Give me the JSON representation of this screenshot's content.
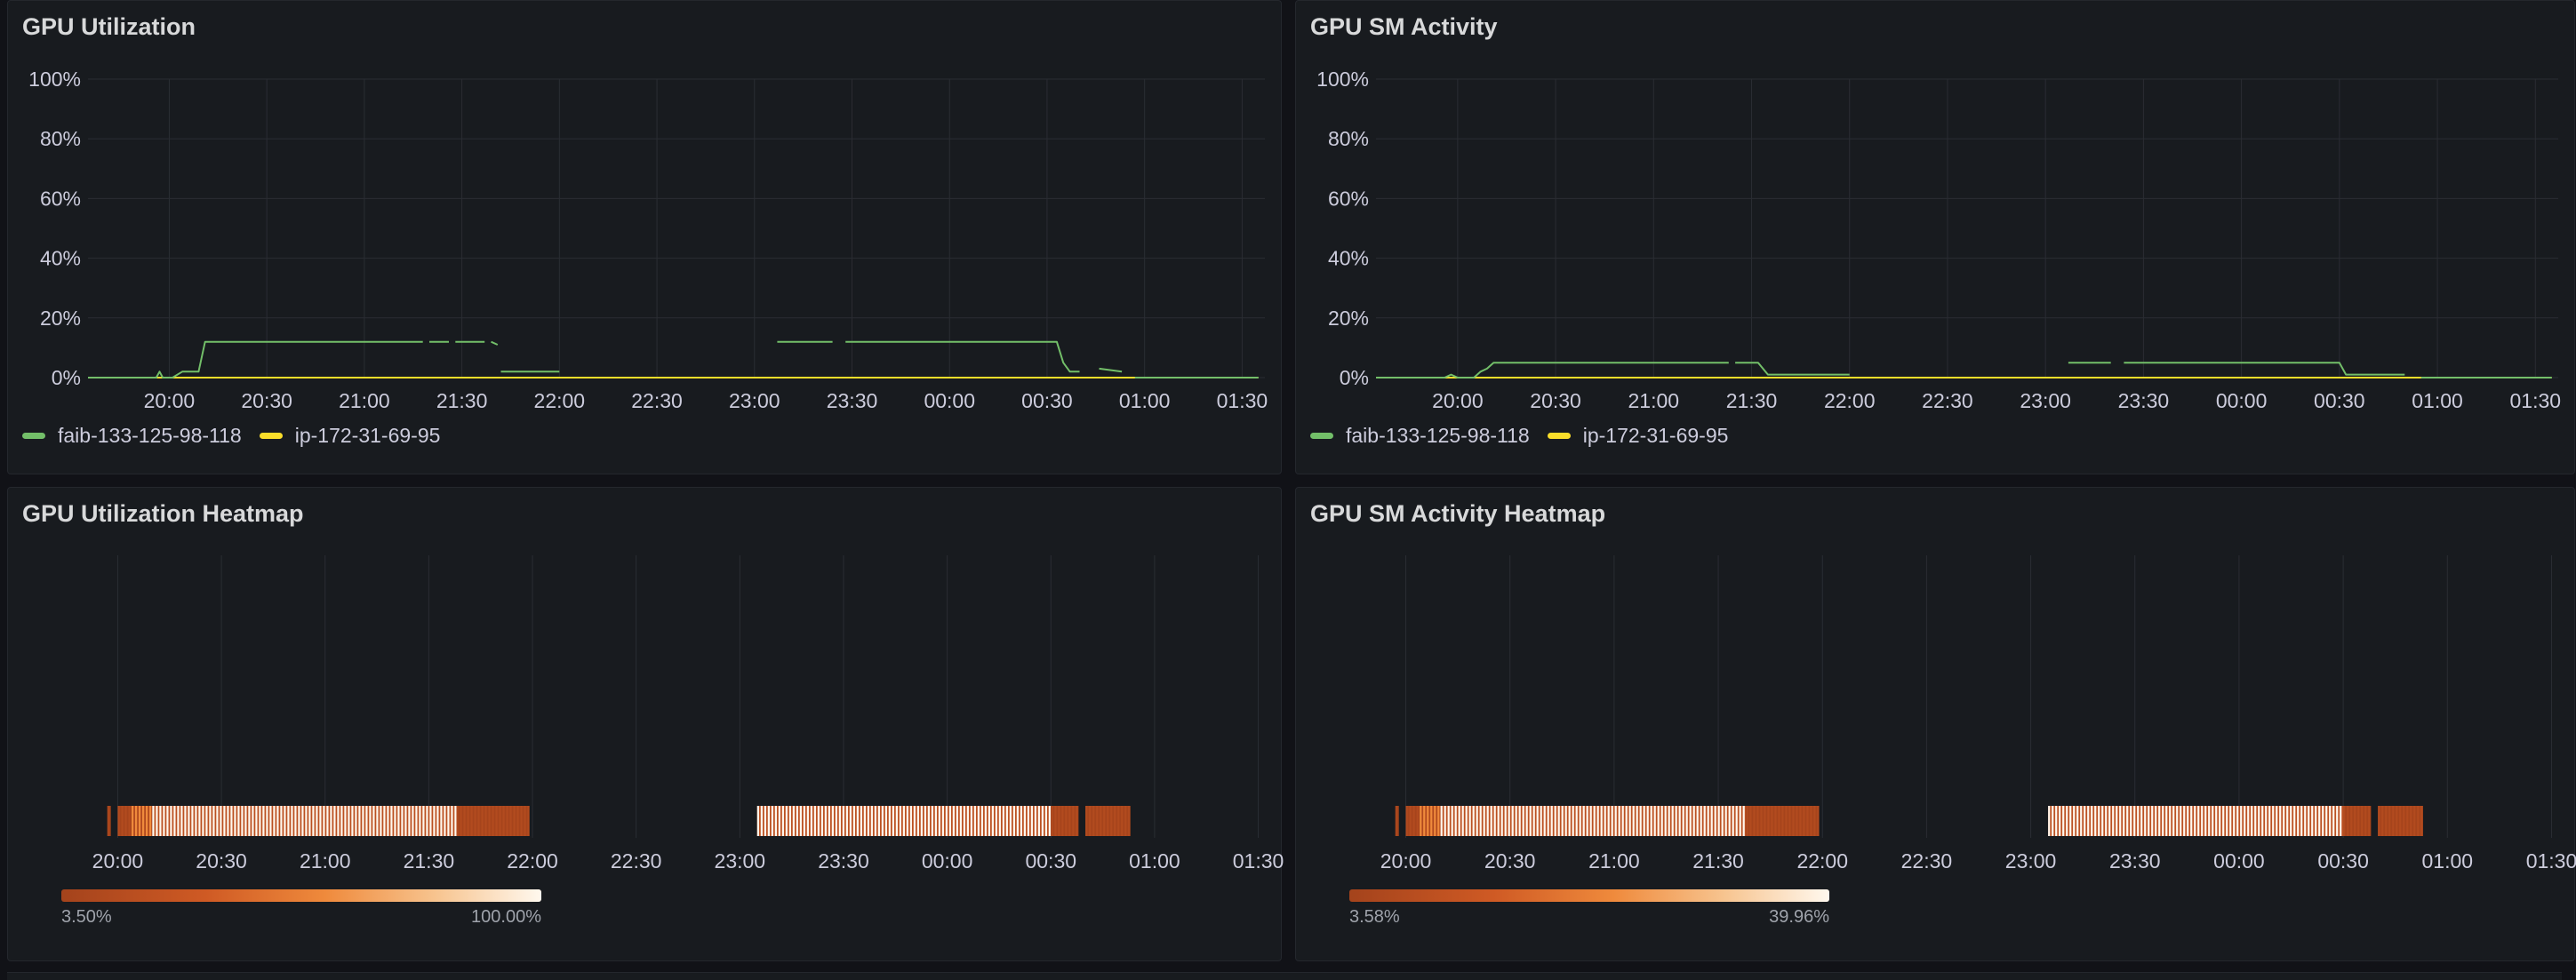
{
  "theme": {
    "background": "#111217",
    "panel_bg": "#181b1f",
    "grid": "#2a2d33",
    "axis_text": "#ccccdc",
    "series_green": "#73bf69",
    "series_yellow": "#fade2a",
    "heat_low": "#a4431c",
    "heat_high": "#fff8ee"
  },
  "panels": {
    "gpu_util": {
      "title": "GPU Utilization",
      "legend": [
        {
          "label": "faib-133-125-98-118",
          "color": "#73bf69"
        },
        {
          "label": "ip-172-31-69-95",
          "color": "#fade2a"
        }
      ]
    },
    "sm_activity": {
      "title": "GPU SM Activity",
      "legend": [
        {
          "label": "faib-133-125-98-118",
          "color": "#73bf69"
        },
        {
          "label": "ip-172-31-69-95",
          "color": "#fade2a"
        }
      ]
    },
    "gpu_util_heatmap": {
      "title": "GPU Utilization Heatmap",
      "scale_min": "3.50%",
      "scale_max": "100.00%"
    },
    "sm_activity_heatmap": {
      "title": "GPU SM Activity Heatmap",
      "scale_min": "3.58%",
      "scale_max": "39.96%"
    }
  },
  "chart_data": [
    {
      "id": "gpu_util",
      "type": "line",
      "title": "GPU Utilization",
      "xlabel": "",
      "ylabel": "",
      "x_ticks": [
        "20:00",
        "20:30",
        "21:00",
        "21:30",
        "22:00",
        "22:30",
        "23:00",
        "23:30",
        "00:00",
        "00:30",
        "01:00",
        "01:30"
      ],
      "y_ticks": [
        "0%",
        "20%",
        "40%",
        "60%",
        "80%",
        "100%"
      ],
      "xlim": [
        "19:35",
        "01:37"
      ],
      "ylim": [
        0,
        100
      ],
      "grid": true,
      "legend_position": "bottom-left",
      "series": [
        {
          "name": "faib-133-125-98-118",
          "color": "#73bf69",
          "segments": [
            [
              [
                "19:35",
                0
              ],
              [
                "19:56",
                0
              ],
              [
                "19:57",
                2
              ],
              [
                "19:58",
                0
              ],
              [
                "20:01",
                0
              ],
              [
                "20:04",
                2
              ],
              [
                "20:09",
                2
              ],
              [
                "20:11",
                12
              ],
              [
                "21:18",
                12
              ]
            ],
            [
              [
                "21:20",
                12
              ],
              [
                "21:26",
                12
              ]
            ],
            [
              [
                "21:28",
                12
              ],
              [
                "21:37",
                12
              ]
            ],
            [
              [
                "21:39",
                12
              ],
              [
                "21:41",
                11
              ]
            ],
            [
              [
                "21:42",
                2
              ],
              [
                "22:00",
                2
              ]
            ],
            [
              [
                "23:07",
                12
              ],
              [
                "23:24",
                12
              ]
            ],
            [
              [
                "23:28",
                12
              ],
              [
                "00:33",
                12
              ],
              [
                "00:35",
                5
              ],
              [
                "00:37",
                2
              ],
              [
                "00:40",
                2
              ]
            ],
            [
              [
                "00:46",
                3
              ],
              [
                "00:53",
                2
              ]
            ],
            [
              [
                "00:57",
                0
              ],
              [
                "01:35",
                0
              ]
            ]
          ]
        },
        {
          "name": "ip-172-31-69-95",
          "color": "#fade2a",
          "segments": [
            [
              [
                "19:35",
                0
              ],
              [
                "01:35",
                0
              ]
            ]
          ]
        }
      ]
    },
    {
      "id": "sm_activity",
      "type": "line",
      "title": "GPU SM Activity",
      "xlabel": "",
      "ylabel": "",
      "x_ticks": [
        "20:00",
        "20:30",
        "21:00",
        "21:30",
        "22:00",
        "22:30",
        "23:00",
        "23:30",
        "00:00",
        "00:30",
        "01:00",
        "01:30"
      ],
      "y_ticks": [
        "0%",
        "20%",
        "40%",
        "60%",
        "80%",
        "100%"
      ],
      "xlim": [
        "19:35",
        "01:37"
      ],
      "ylim": [
        0,
        100
      ],
      "grid": true,
      "legend_position": "bottom-left",
      "series": [
        {
          "name": "faib-133-125-98-118",
          "color": "#73bf69",
          "segments": [
            [
              [
                "19:35",
                0
              ],
              [
                "19:56",
                0
              ],
              [
                "19:58",
                1
              ],
              [
                "20:00",
                0
              ],
              [
                "20:05",
                0
              ],
              [
                "20:07",
                2
              ],
              [
                "20:09",
                3
              ],
              [
                "20:11",
                5
              ],
              [
                "21:23",
                5
              ]
            ],
            [
              [
                "21:25",
                5
              ],
              [
                "21:32",
                5
              ],
              [
                "21:35",
                1
              ],
              [
                "22:00",
                1
              ]
            ],
            [
              [
                "23:07",
                5
              ],
              [
                "23:20",
                5
              ]
            ],
            [
              [
                "23:24",
                5
              ],
              [
                "00:30",
                5
              ],
              [
                "00:32",
                1
              ],
              [
                "00:50",
                1
              ]
            ],
            [
              [
                "00:55",
                0
              ],
              [
                "01:35",
                0
              ]
            ]
          ]
        },
        {
          "name": "ip-172-31-69-95",
          "color": "#fade2a",
          "segments": [
            [
              [
                "19:35",
                0
              ],
              [
                "01:35",
                0
              ]
            ]
          ]
        }
      ]
    },
    {
      "id": "gpu_util_heatmap",
      "type": "heatmap",
      "title": "GPU Utilization Heatmap",
      "x_ticks": [
        "20:00",
        "20:30",
        "21:00",
        "21:30",
        "22:00",
        "22:30",
        "23:00",
        "23:30",
        "00:00",
        "00:30",
        "01:00",
        "01:30"
      ],
      "xlim": [
        "19:55",
        "01:35"
      ],
      "color_scale": {
        "min": "3.50%",
        "max": "100.00%"
      },
      "runs": [
        {
          "start": "19:57",
          "end": "19:58",
          "level": 0.05
        },
        {
          "start": "20:00",
          "end": "20:04",
          "level": 0.1
        },
        {
          "start": "20:04",
          "end": "20:10",
          "level": 0.55
        },
        {
          "start": "20:10",
          "end": "21:38",
          "level": 1.0
        },
        {
          "start": "21:38",
          "end": "21:59",
          "level": 0.1
        },
        {
          "start": "23:05",
          "end": "00:30",
          "level": 1.0
        },
        {
          "start": "00:30",
          "end": "00:38",
          "level": 0.1
        },
        {
          "start": "00:40",
          "end": "00:53",
          "level": 0.1
        }
      ]
    },
    {
      "id": "sm_activity_heatmap",
      "type": "heatmap",
      "title": "GPU SM Activity Heatmap",
      "x_ticks": [
        "20:00",
        "20:30",
        "21:00",
        "21:30",
        "22:00",
        "22:30",
        "23:00",
        "23:30",
        "00:00",
        "00:30",
        "01:00",
        "01:30"
      ],
      "xlim": [
        "19:55",
        "01:35"
      ],
      "color_scale": {
        "min": "3.58%",
        "max": "39.96%"
      },
      "runs": [
        {
          "start": "19:57",
          "end": "19:58",
          "level": 0.05
        },
        {
          "start": "20:00",
          "end": "20:04",
          "level": 0.1
        },
        {
          "start": "20:04",
          "end": "20:10",
          "level": 0.55
        },
        {
          "start": "20:10",
          "end": "21:38",
          "level": 1.0
        },
        {
          "start": "21:38",
          "end": "21:59",
          "level": 0.1
        },
        {
          "start": "23:05",
          "end": "00:30",
          "level": 1.0
        },
        {
          "start": "00:30",
          "end": "00:38",
          "level": 0.1
        },
        {
          "start": "00:40",
          "end": "00:53",
          "level": 0.1
        }
      ]
    }
  ]
}
